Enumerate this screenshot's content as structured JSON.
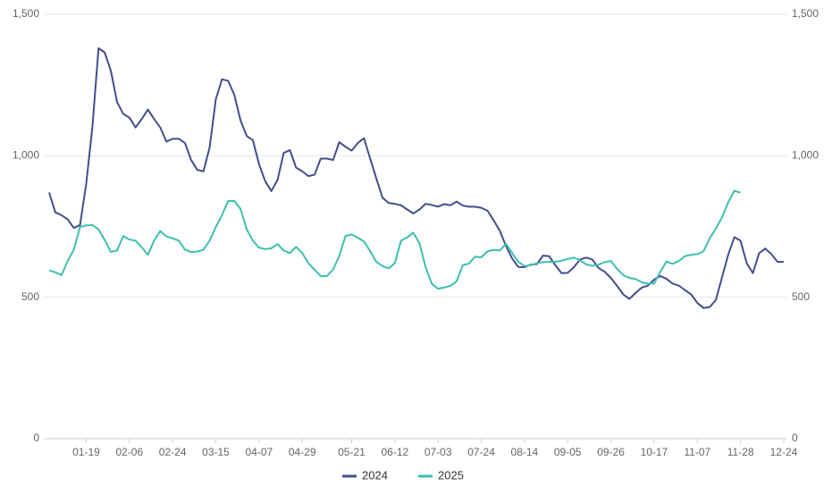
{
  "chart_data": {
    "type": "line",
    "categories": [
      null,
      null,
      null,
      null,
      null,
      null,
      "01-19",
      null,
      null,
      null,
      null,
      null,
      null,
      "02-06",
      null,
      null,
      null,
      null,
      null,
      null,
      "02-24",
      null,
      null,
      null,
      null,
      null,
      null,
      "03-15",
      null,
      null,
      null,
      null,
      null,
      null,
      "04-07",
      null,
      null,
      null,
      null,
      null,
      null,
      "04-29",
      null,
      null,
      null,
      null,
      null,
      null,
      null,
      "05-21",
      null,
      null,
      null,
      null,
      null,
      null,
      "06-12",
      null,
      null,
      null,
      null,
      null,
      null,
      "07-03",
      null,
      null,
      null,
      null,
      null,
      null,
      "07-24",
      null,
      null,
      null,
      null,
      null,
      null,
      "08-14",
      null,
      null,
      null,
      null,
      null,
      null,
      "09-05",
      null,
      null,
      null,
      null,
      null,
      null,
      "09-26",
      null,
      null,
      null,
      null,
      null,
      null,
      "10-17",
      null,
      null,
      null,
      null,
      null,
      null,
      "11-07",
      null,
      null,
      null,
      null,
      null,
      null,
      "11-28",
      null,
      null,
      null,
      null,
      null,
      null,
      "12-24"
    ],
    "series": [
      {
        "name": "2024",
        "color": "#454d8c",
        "values": [
          870,
          800,
          790,
          775,
          745,
          755,
          900,
          1100,
          1380,
          1365,
          1300,
          1190,
          1148,
          1135,
          1100,
          1130,
          1163,
          1130,
          1100,
          1050,
          1060,
          1060,
          1045,
          985,
          950,
          945,
          1030,
          1200,
          1270,
          1265,
          1215,
          1125,
          1070,
          1055,
          970,
          910,
          875,
          915,
          1010,
          1020,
          958,
          945,
          928,
          933,
          990,
          990,
          985,
          1048,
          1032,
          1018,
          1045,
          1062,
          990,
          920,
          852,
          833,
          830,
          825,
          810,
          796,
          810,
          830,
          826,
          820,
          829,
          825,
          838,
          824,
          820,
          820,
          816,
          806,
          772,
          735,
          681,
          637,
          607,
          606,
          615,
          617,
          647,
          645,
          613,
          585,
          586,
          606,
          633,
          640,
          633,
          603,
          590,
          568,
          540,
          510,
          494,
          515,
          534,
          541,
          562,
          575,
          565,
          548,
          541,
          525,
          510,
          480,
          462,
          465,
          490,
          570,
          650,
          712,
          700,
          620,
          585,
          655,
          672,
          652,
          625,
          625
        ]
      },
      {
        "name": "2025",
        "color": "#3dbfb0",
        "values": [
          595,
          588,
          578,
          628,
          668,
          748,
          754,
          755,
          740,
          702,
          660,
          665,
          716,
          704,
          700,
          676,
          650,
          700,
          734,
          715,
          708,
          700,
          668,
          660,
          661,
          668,
          700,
          748,
          790,
          840,
          840,
          812,
          740,
          700,
          675,
          670,
          673,
          688,
          665,
          656,
          678,
          656,
          620,
          597,
          574,
          575,
          598,
          646,
          716,
          722,
          710,
          697,
          663,
          625,
          610,
          602,
          620,
          700,
          711,
          728,
          690,
          605,
          547,
          530,
          534,
          540,
          556,
          613,
          619,
          643,
          641,
          662,
          667,
          665,
          689,
          656,
          625,
          610,
          613,
          620,
          624,
          625,
          625,
          629,
          635,
          640,
          630,
          616,
          611,
          615,
          624,
          628,
          600,
          578,
          568,
          564,
          553,
          548,
          548,
          590,
          626,
          618,
          628,
          645,
          650,
          652,
          662,
          708,
          742,
          782,
          835,
          876,
          870,
          null,
          null,
          null,
          null,
          null,
          null,
          null
        ]
      }
    ],
    "ylim": [
      0,
      1500
    ],
    "yticks": [
      0,
      500,
      {
        "value": 1000,
        "label": "1,000"
      },
      {
        "value": 1500,
        "label": "1,500"
      }
    ],
    "y2lim": [
      0,
      1500
    ],
    "y2ticks": [
      0,
      500,
      {
        "value": 1000,
        "label": "1,000"
      },
      {
        "value": 1500,
        "label": "1,500"
      }
    ],
    "grid": true,
    "legend": "bottom"
  }
}
